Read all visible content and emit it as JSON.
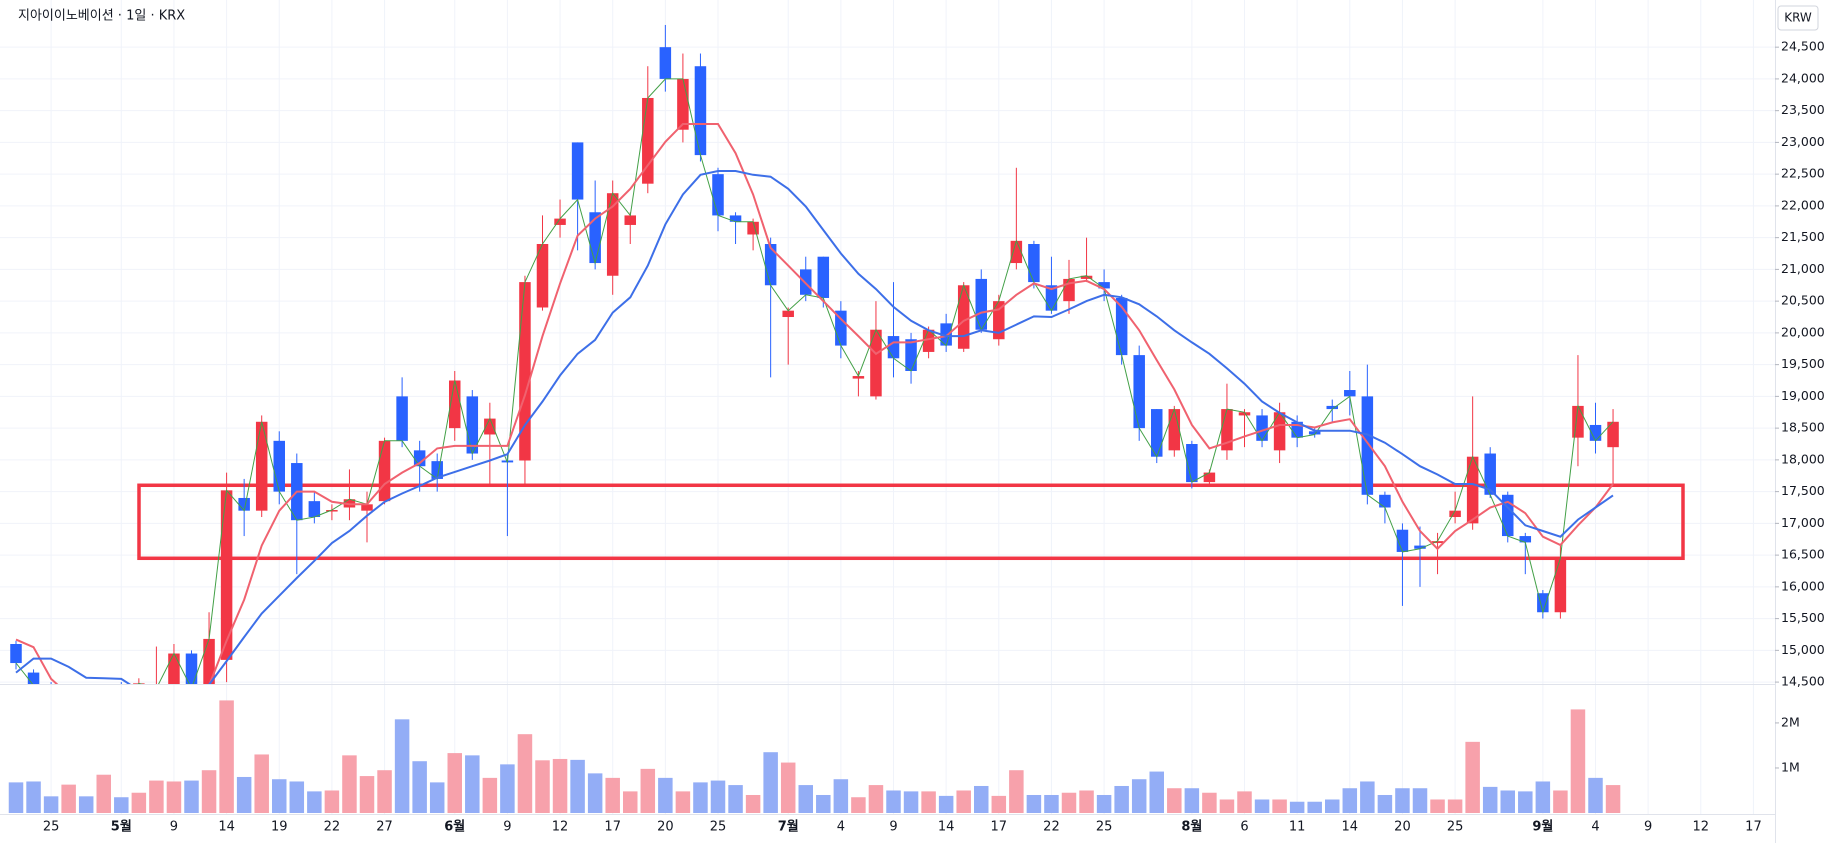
{
  "chart_data": {
    "type": "candlestick",
    "title": "지아이이노베이션 · 1일 · KRX",
    "currency": "KRW",
    "categories": [
      null,
      null,
      "25",
      null,
      null,
      null,
      "5월",
      null,
      null,
      "9",
      null,
      null,
      "14",
      null,
      null,
      "19",
      null,
      null,
      "22",
      null,
      null,
      "27",
      null,
      null,
      null,
      "6월",
      null,
      null,
      "9",
      null,
      null,
      "12",
      null,
      null,
      "17",
      null,
      null,
      "20",
      null,
      null,
      "25",
      null,
      null,
      null,
      "7월",
      null,
      null,
      "4",
      null,
      null,
      "9",
      null,
      null,
      "14",
      null,
      null,
      "17",
      null,
      null,
      "22",
      null,
      null,
      "25",
      null,
      null,
      null,
      null,
      "8월",
      null,
      null,
      "6",
      null,
      null,
      "11",
      null,
      null,
      "14",
      null,
      null,
      "20",
      null,
      null,
      "25",
      null,
      null,
      null,
      null,
      "9월",
      null,
      null,
      "4",
      null,
      null,
      "9",
      null,
      null,
      "12",
      null,
      null,
      "17"
    ],
    "open": [
      15100,
      14650,
      14400,
      14300,
      14350,
      14200,
      14300,
      14250,
      14350,
      14400,
      14950,
      14400,
      14850,
      17400,
      17200,
      18300,
      17950,
      17350,
      17200,
      17250,
      17200,
      17350,
      19000,
      18150,
      17980,
      18500,
      19000,
      18400,
      17990,
      17990,
      20400,
      21700,
      23000,
      21900,
      20900,
      21700,
      22350,
      24500,
      23200,
      24200,
      22500,
      21850,
      21550,
      21400,
      20250,
      21000,
      21200,
      20350,
      19280,
      19000,
      19950,
      19900,
      19700,
      20150,
      19750,
      20850,
      19900,
      21100,
      21400,
      20750,
      20500,
      20850,
      20800,
      20550,
      19650,
      18800,
      18150,
      18250,
      17650,
      18150,
      18700,
      18700,
      18150,
      18600,
      18450,
      18850,
      19100,
      19000,
      17450,
      16900,
      16650,
      16690,
      17100,
      17000,
      18100,
      17450,
      16800,
      15900,
      15600,
      18350,
      18550,
      18200,
      null,
      null,
      null,
      null,
      null,
      null,
      null,
      null
    ],
    "high": [
      15150,
      14700,
      14500,
      14450,
      14450,
      14400,
      14500,
      14560,
      15060,
      15100,
      15000,
      15600,
      17800,
      17700,
      18700,
      18450,
      18100,
      17500,
      17300,
      17850,
      17500,
      18350,
      19300,
      18300,
      18100,
      19400,
      19100,
      18900,
      18100,
      20900,
      21850,
      22100,
      23000,
      22400,
      22400,
      21900,
      24200,
      24850,
      24400,
      24400,
      22600,
      21900,
      21800,
      21500,
      20400,
      21200,
      21200,
      20500,
      19400,
      20500,
      20800,
      20000,
      20100,
      20300,
      20800,
      21000,
      20600,
      22600,
      21450,
      21200,
      21150,
      21500,
      21000,
      20600,
      19800,
      18800,
      18850,
      18300,
      17850,
      19200,
      18800,
      18800,
      18900,
      18700,
      18500,
      18950,
      19400,
      19500,
      17500,
      17000,
      16950,
      16850,
      17500,
      19000,
      18200,
      17500,
      16850,
      15950,
      16650,
      19650,
      18900,
      18800,
      null,
      null,
      null,
      null,
      null,
      null,
      null,
      null
    ],
    "low": [
      14700,
      14300,
      14200,
      14100,
      14150,
      14000,
      14150,
      14200,
      14250,
      14300,
      14300,
      14350,
      14500,
      16800,
      17100,
      17300,
      16200,
      17000,
      17050,
      17050,
      16700,
      17300,
      18200,
      17500,
      17500,
      18300,
      18000,
      17600,
      16800,
      17600,
      20350,
      21500,
      21300,
      21000,
      20600,
      21400,
      22200,
      23800,
      23000,
      22700,
      21600,
      21400,
      21300,
      19300,
      19500,
      20500,
      20400,
      19600,
      19000,
      18950,
      19300,
      19200,
      19600,
      19700,
      19700,
      20000,
      19800,
      21000,
      20700,
      20300,
      20300,
      20800,
      20500,
      19500,
      18300,
      17950,
      18050,
      17550,
      17600,
      18000,
      18200,
      18200,
      17950,
      18200,
      18350,
      18600,
      18700,
      17300,
      17000,
      15700,
      16000,
      16200,
      17000,
      16900,
      17400,
      16700,
      16200,
      15500,
      15500,
      17900,
      18100,
      17600,
      null,
      null,
      null,
      null,
      null,
      null,
      null,
      null
    ],
    "close": [
      14800,
      14450,
      14300,
      14350,
      14200,
      14300,
      14250,
      14480,
      14400,
      14950,
      14400,
      15180,
      17520,
      17200,
      18600,
      17500,
      17050,
      17100,
      17210,
      17380,
      17300,
      18300,
      18300,
      17900,
      17700,
      19250,
      18100,
      18650,
      17960,
      20800,
      21400,
      21800,
      22100,
      21100,
      22200,
      21850,
      23700,
      24000,
      24000,
      22800,
      21850,
      21750,
      21750,
      20750,
      20350,
      20600,
      20550,
      19800,
      19320,
      20050,
      19600,
      19400,
      20050,
      19800,
      20750,
      20050,
      20500,
      21450,
      20800,
      20350,
      20850,
      20900,
      20700,
      19650,
      18500,
      18050,
      18800,
      17650,
      17800,
      18800,
      18750,
      18300,
      18750,
      18350,
      18400,
      18800,
      19000,
      17450,
      17250,
      16550,
      16600,
      16720,
      17200,
      18050,
      17450,
      16800,
      16700,
      15600,
      16450,
      18850,
      18300,
      18600,
      null,
      null,
      null,
      null,
      null,
      null,
      null,
      null
    ],
    "volume": [
      680000,
      700000,
      370000,
      630000,
      370000,
      850000,
      350000,
      450000,
      720000,
      700000,
      720000,
      950000,
      2500000,
      800000,
      1300000,
      750000,
      700000,
      480000,
      500000,
      1280000,
      820000,
      950000,
      2080000,
      1150000,
      680000,
      1330000,
      1280000,
      780000,
      1080000,
      1750000,
      1170000,
      1200000,
      1180000,
      880000,
      780000,
      480000,
      980000,
      780000,
      480000,
      680000,
      720000,
      620000,
      400000,
      1350000,
      1120000,
      620000,
      400000,
      750000,
      350000,
      620000,
      500000,
      480000,
      480000,
      380000,
      500000,
      600000,
      380000,
      950000,
      400000,
      400000,
      450000,
      500000,
      400000,
      600000,
      750000,
      920000,
      550000,
      550000,
      450000,
      300000,
      480000,
      300000,
      300000,
      250000,
      250000,
      300000,
      550000,
      700000,
      400000,
      550000,
      550000,
      300000,
      300000,
      1580000,
      580000,
      500000,
      480000,
      700000,
      500000,
      2300000,
      780000,
      620000,
      null,
      null,
      null,
      null,
      null,
      null,
      null,
      null
    ],
    "ma_lines": [
      {
        "color": "#f0626f",
        "values": [
          15170,
          15050,
          14550,
          14300,
          14300,
          14280,
          14300,
          14320,
          14330,
          14350,
          14380,
          14450,
          15150,
          15800,
          16650,
          17200,
          17500,
          17500,
          17340,
          17300,
          17300,
          17620,
          17800,
          17950,
          18180,
          18220,
          18220,
          18220,
          18220,
          19020,
          19950,
          20780,
          21530,
          21800,
          21990,
          22270,
          22640,
          23010,
          23290,
          23290,
          23290,
          22830,
          22180,
          21340,
          21060,
          20780,
          20500,
          20220,
          19950,
          19670,
          19850,
          19850,
          19900,
          19950,
          20190,
          20320,
          20370,
          20600,
          20780,
          20690,
          20780,
          20820,
          20690,
          20410,
          20040,
          19570,
          19110,
          18550,
          18180,
          18270,
          18370,
          18460,
          18550,
          18550,
          18510,
          18590,
          18640,
          18270,
          17900,
          17340,
          16880,
          16600,
          16880,
          17060,
          17250,
          17340,
          17160,
          16790,
          16660,
          16970,
          17250,
          17620,
          null,
          null,
          null,
          null,
          null,
          null,
          null,
          null
        ]
      },
      {
        "color": "#3d6fe8",
        "values": [
          14650,
          14870,
          14870,
          14740,
          14570,
          14560,
          14550,
          14370,
          14300,
          14300,
          14350,
          14460,
          14830,
          15210,
          15580,
          15860,
          16140,
          16410,
          16690,
          16880,
          17120,
          17340,
          17470,
          17590,
          17720,
          17810,
          17900,
          17990,
          18090,
          18550,
          18920,
          19330,
          19670,
          19890,
          20320,
          20560,
          21060,
          21710,
          22180,
          22490,
          22550,
          22550,
          22490,
          22460,
          22270,
          21990,
          21620,
          21250,
          20930,
          20690,
          20410,
          20190,
          20040,
          19950,
          19950,
          20040,
          20000,
          20130,
          20260,
          20250,
          20370,
          20500,
          20600,
          20560,
          20450,
          20260,
          20040,
          19850,
          19670,
          19440,
          19200,
          18920,
          18740,
          18590,
          18460,
          18460,
          18460,
          18400,
          18270,
          18090,
          17900,
          17770,
          17620,
          17620,
          17530,
          17250,
          16970,
          16880,
          16790,
          17060,
          17250,
          17440,
          null,
          null,
          null,
          null,
          null,
          null,
          null,
          null
        ]
      }
    ],
    "up_color": "#f23645",
    "down_color": "#2962ff",
    "volume_up_color": "#f7a1ab",
    "volume_down_color": "#93adf6",
    "close_line_color": "#43a047",
    "zone": [
      16450,
      17600
    ],
    "zone_color": "#f23645",
    "ylim": [
      14470,
      25180
    ],
    "yticks": [
      {
        "value": 14500,
        "label": "14,500"
      },
      {
        "value": 15000,
        "label": "15,000"
      },
      {
        "value": 15500,
        "label": "15,500"
      },
      {
        "value": 16000,
        "label": "16,000"
      },
      {
        "value": 16500,
        "label": "16,500"
      },
      {
        "value": 17000,
        "label": "17,000"
      },
      {
        "value": 17500,
        "label": "17,500"
      },
      {
        "value": 18000,
        "label": "18,000"
      },
      {
        "value": 18500,
        "label": "18,500"
      },
      {
        "value": 19000,
        "label": "19,000"
      },
      {
        "value": 19500,
        "label": "19,500"
      },
      {
        "value": 20000,
        "label": "20,000"
      },
      {
        "value": 20500,
        "label": "20,500"
      },
      {
        "value": 21000,
        "label": "21,000"
      },
      {
        "value": 21500,
        "label": "21,500"
      },
      {
        "value": 22000,
        "label": "22,000"
      },
      {
        "value": 22500,
        "label": "22,500"
      },
      {
        "value": 23000,
        "label": "23,000"
      },
      {
        "value": 23500,
        "label": "23,500"
      },
      {
        "value": 24000,
        "label": "24,000"
      },
      {
        "value": 24500,
        "label": "24,500"
      }
    ],
    "y2lim": [
      0,
      2820000
    ],
    "y2ticks": [
      {
        "value": 1000000,
        "label": "1M"
      },
      {
        "value": 2000000,
        "label": "2M"
      }
    ],
    "grid": true
  }
}
